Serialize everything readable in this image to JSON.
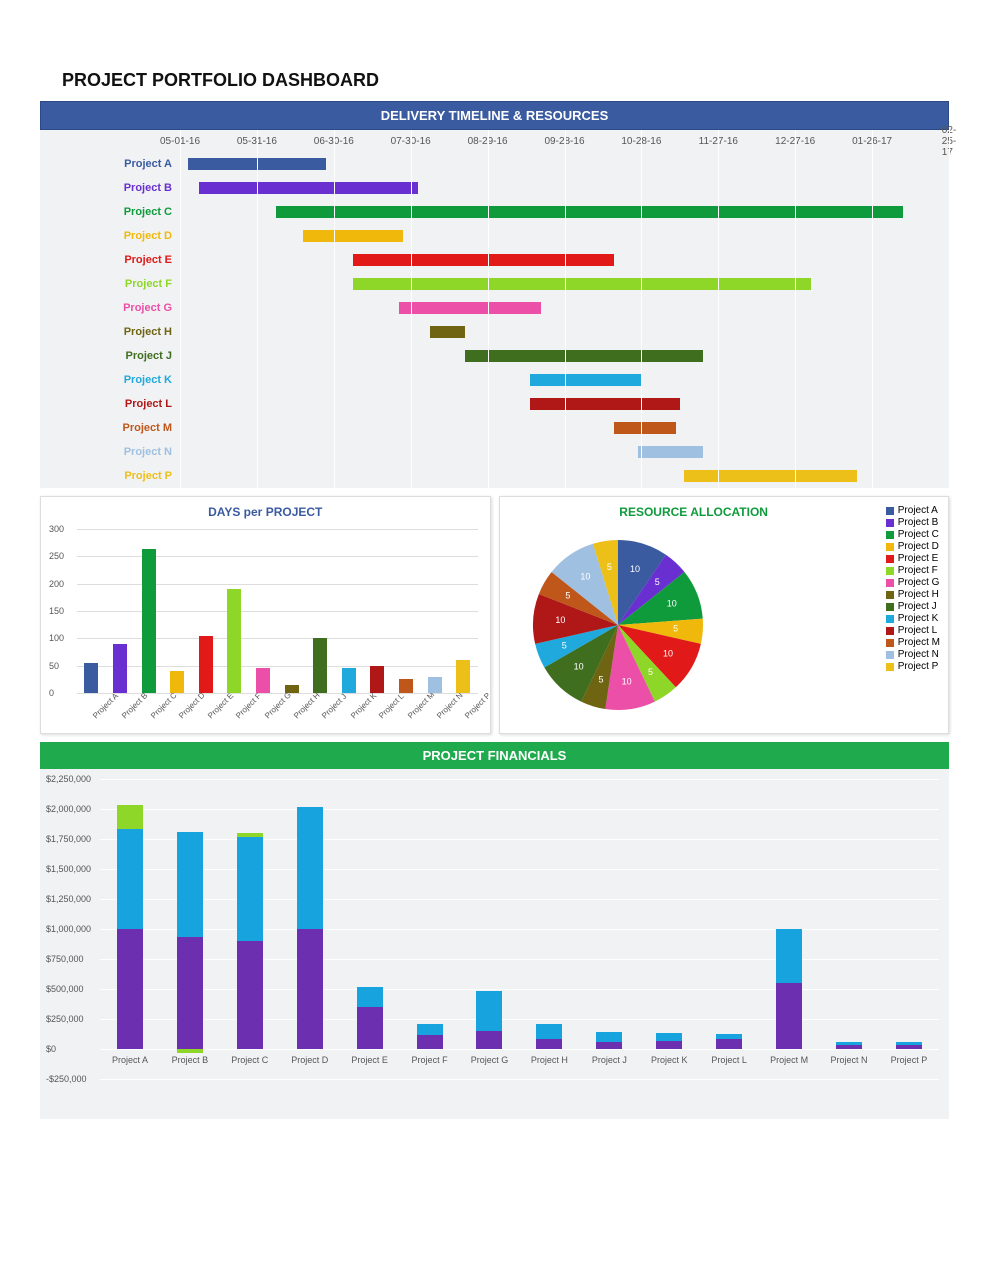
{
  "title": "PROJECT PORTFOLIO DASHBOARD",
  "timeline": {
    "header": "DELIVERY TIMELINE & RESOURCES",
    "header_bg": "#3a5ba0",
    "dates": [
      "05-01-16",
      "05-31-16",
      "06-30-16",
      "07-30-16",
      "08-29-16",
      "09-28-16",
      "10-28-16",
      "11-27-16",
      "12-27-16",
      "01-26-17",
      "02-25-17"
    ],
    "rows": [
      {
        "label": "Project A",
        "color": "#3a5ba0",
        "label_color": "#3a5ba0",
        "start": 0.01,
        "end": 0.19
      },
      {
        "label": "Project B",
        "color": "#6a2fd0",
        "label_color": "#6a2fd0",
        "start": 0.025,
        "end": 0.31
      },
      {
        "label": "Project C",
        "color": "#0f9b3b",
        "label_color": "#0f9b3b",
        "start": 0.125,
        "end": 0.94
      },
      {
        "label": "Project D",
        "color": "#efb80a",
        "label_color": "#efb80a",
        "start": 0.16,
        "end": 0.29
      },
      {
        "label": "Project E",
        "color": "#e11919",
        "label_color": "#e11919",
        "start": 0.225,
        "end": 0.565
      },
      {
        "label": "Project F",
        "color": "#8ed627",
        "label_color": "#8ed627",
        "start": 0.225,
        "end": 0.82
      },
      {
        "label": "Project G",
        "color": "#ec4fa7",
        "label_color": "#ec4fa7",
        "start": 0.285,
        "end": 0.47
      },
      {
        "label": "Project H",
        "color": "#6e6412",
        "label_color": "#6e6412",
        "start": 0.325,
        "end": 0.37
      },
      {
        "label": "Project J",
        "color": "#3f6e1e",
        "label_color": "#3f6e1e",
        "start": 0.37,
        "end": 0.68
      },
      {
        "label": "Project K",
        "color": "#1fa9dd",
        "label_color": "#1fa9dd",
        "start": 0.455,
        "end": 0.6
      },
      {
        "label": "Project L",
        "color": "#b01818",
        "label_color": "#b01818",
        "start": 0.455,
        "end": 0.65
      },
      {
        "label": "Project M",
        "color": "#c0571a",
        "label_color": "#c0571a",
        "start": 0.565,
        "end": 0.645
      },
      {
        "label": "Project N",
        "color": "#9fc0e0",
        "label_color": "#9fc0e0",
        "start": 0.595,
        "end": 0.68
      },
      {
        "label": "Project P",
        "color": "#edbf19",
        "label_color": "#edbf19",
        "start": 0.655,
        "end": 0.88
      }
    ]
  },
  "days_chart": {
    "title": "DAYS per PROJECT",
    "title_color": "#3a5ba0",
    "ymax": 300,
    "yticks": [
      0,
      50,
      100,
      150,
      200,
      250,
      300
    ],
    "bars": [
      {
        "label": "Project A",
        "value": 55,
        "color": "#3a5ba0"
      },
      {
        "label": "Project B",
        "value": 90,
        "color": "#6a2fd0"
      },
      {
        "label": "Project C",
        "value": 263,
        "color": "#0f9b3b"
      },
      {
        "label": "Project D",
        "value": 40,
        "color": "#efb80a"
      },
      {
        "label": "Project E",
        "value": 105,
        "color": "#e11919"
      },
      {
        "label": "Project F",
        "value": 190,
        "color": "#8ed627"
      },
      {
        "label": "Project G",
        "value": 45,
        "color": "#ec4fa7"
      },
      {
        "label": "Project H",
        "value": 15,
        "color": "#6e6412"
      },
      {
        "label": "Project J",
        "value": 100,
        "color": "#3f6e1e"
      },
      {
        "label": "Project K",
        "value": 45,
        "color": "#1fa9dd"
      },
      {
        "label": "Project L",
        "value": 50,
        "color": "#b01818"
      },
      {
        "label": "Project M",
        "value": 25,
        "color": "#c0571a"
      },
      {
        "label": "Project N",
        "value": 30,
        "color": "#9fc0e0"
      },
      {
        "label": "Project P",
        "value": 60,
        "color": "#edbf19"
      }
    ]
  },
  "pie": {
    "title": "RESOURCE ALLOCATION",
    "title_color": "#0f9b3b",
    "slices": [
      {
        "label": "Project A",
        "value": 10,
        "color": "#3a5ba0"
      },
      {
        "label": "Project B",
        "value": 5,
        "color": "#6a2fd0"
      },
      {
        "label": "Project C",
        "value": 10,
        "color": "#0f9b3b"
      },
      {
        "label": "Project D",
        "value": 5,
        "color": "#efb80a"
      },
      {
        "label": "Project E",
        "value": 10,
        "color": "#e11919"
      },
      {
        "label": "Project F",
        "value": 5,
        "color": "#8ed627"
      },
      {
        "label": "Project G",
        "value": 10,
        "color": "#ec4fa7"
      },
      {
        "label": "Project H",
        "value": 5,
        "color": "#6e6412"
      },
      {
        "label": "Project J",
        "value": 10,
        "color": "#3f6e1e"
      },
      {
        "label": "Project K",
        "value": 5,
        "color": "#1fa9dd"
      },
      {
        "label": "Project L",
        "value": 10,
        "color": "#b01818"
      },
      {
        "label": "Project M",
        "value": 5,
        "color": "#c0571a"
      },
      {
        "label": "Project N",
        "value": 10,
        "color": "#9fc0e0"
      },
      {
        "label": "Project P",
        "value": 5,
        "color": "#edbf19"
      }
    ]
  },
  "financials": {
    "header": "PROJECT FINANCIALS",
    "header_bg": "#1fab4d",
    "ymin": -250000,
    "ymax": 2250000,
    "yticks": [
      "-$250,000",
      "$0",
      "$250,000",
      "$500,000",
      "$750,000",
      "$1,000,000",
      "$1,250,000",
      "$1,500,000",
      "$1,750,000",
      "$2,000,000",
      "$2,250,000"
    ],
    "colors": {
      "seg1": "#6b2fb0",
      "seg2": "#17a3de",
      "seg3": "#8ed627",
      "neg": "#8ed627"
    },
    "bars": [
      {
        "label": "Project A",
        "seg1": 1000000,
        "seg2": 830000,
        "seg3": 200000,
        "neg": 0
      },
      {
        "label": "Project B",
        "seg1": 930000,
        "seg2": 880000,
        "seg3": 0,
        "neg": -30000
      },
      {
        "label": "Project C",
        "seg1": 900000,
        "seg2": 870000,
        "seg3": 30000,
        "neg": 0
      },
      {
        "label": "Project D",
        "seg1": 1000000,
        "seg2": 1020000,
        "seg3": 0,
        "neg": 0
      },
      {
        "label": "Project E",
        "seg1": 350000,
        "seg2": 170000,
        "seg3": 0,
        "neg": 0
      },
      {
        "label": "Project F",
        "seg1": 120000,
        "seg2": 90000,
        "seg3": 0,
        "neg": 0
      },
      {
        "label": "Project G",
        "seg1": 150000,
        "seg2": 330000,
        "seg3": 0,
        "neg": 0
      },
      {
        "label": "Project H",
        "seg1": 80000,
        "seg2": 125000,
        "seg3": 0,
        "neg": 0
      },
      {
        "label": "Project J",
        "seg1": 60000,
        "seg2": 80000,
        "seg3": 0,
        "neg": 0
      },
      {
        "label": "Project K",
        "seg1": 70000,
        "seg2": 60000,
        "seg3": 0,
        "neg": 0
      },
      {
        "label": "Project L",
        "seg1": 85000,
        "seg2": 40000,
        "seg3": 0,
        "neg": 0
      },
      {
        "label": "Project M",
        "seg1": 550000,
        "seg2": 450000,
        "seg3": 0,
        "neg": 0
      },
      {
        "label": "Project N",
        "seg1": 30000,
        "seg2": 30000,
        "seg3": 0,
        "neg": 0
      },
      {
        "label": "Project P",
        "seg1": 35000,
        "seg2": 20000,
        "seg3": 0,
        "neg": 0
      }
    ]
  }
}
